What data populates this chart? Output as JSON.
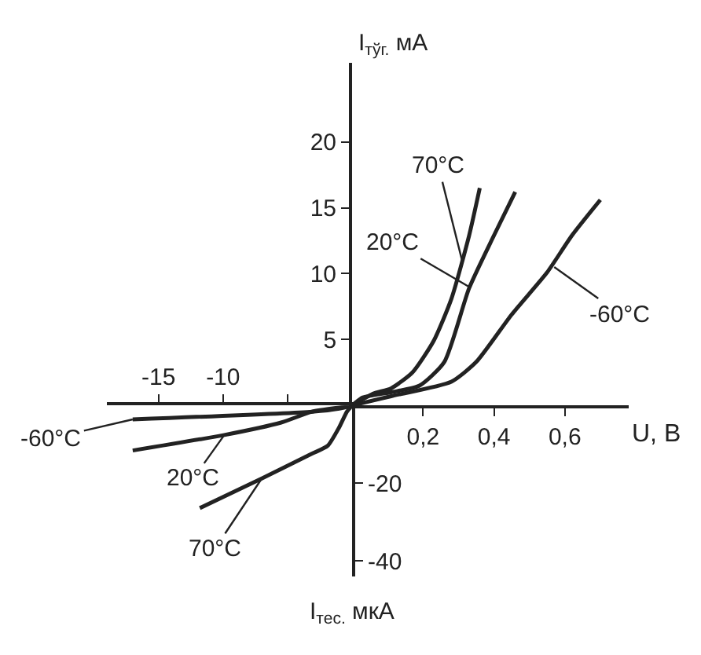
{
  "chart_data": [
    {
      "type": "line",
      "xlabel": "U, В",
      "ylabel": "I$_{тўг.}$ мА",
      "xlim": [
        0,
        0.78
      ],
      "xticks": [
        {
          "value": 0.2,
          "label": "0,2"
        },
        {
          "value": 0.4,
          "label": "0,4"
        },
        {
          "value": 0.6,
          "label": "0,6"
        }
      ],
      "ylim": [
        0,
        26
      ],
      "yticks": [
        5,
        10,
        15,
        20
      ],
      "marker": "none",
      "line_style": "solid",
      "series": [
        {
          "color": "#222222",
          "x": [
            0,
            0.06,
            0.11,
            0.17,
            0.23,
            0.28,
            0.33,
            0.36
          ],
          "values": [
            0,
            0.9,
            1.3,
            2.5,
            4.9,
            8.1,
            12.9,
            16.5
          ]
        },
        {
          "color": "#222222",
          "x": [
            0,
            0.03,
            0.11,
            0.19,
            0.26,
            0.33,
            0.4,
            0.46
          ],
          "values": [
            0,
            0.6,
            1,
            1.5,
            3.3,
            8.9,
            12.9,
            16.2
          ]
        },
        {
          "color": "#222222",
          "x": [
            0,
            0.11,
            0.28,
            0.35,
            0.45,
            0.55,
            0.62,
            0.7
          ],
          "values": [
            0,
            0.7,
            1.8,
            3.3,
            6.9,
            10.1,
            12.9,
            15.6
          ]
        }
      ],
      "annotations": [
        {
          "text": "70°C",
          "x": 0.31,
          "y": 11
        },
        {
          "text": "20°C",
          "x": 0.33,
          "y": 9
        },
        {
          "text": "-60°C",
          "x": 0.57,
          "y": 10.5
        }
      ]
    },
    {
      "type": "line",
      "xlim": [
        -19,
        0
      ],
      "xticks": [
        -15,
        -10,
        {
          "value": -5,
          "label": null
        }
      ],
      "ylim": [
        -44,
        0
      ],
      "yticks": [
        -20,
        -40
      ],
      "marker": "none",
      "line_style": "solid",
      "series": [
        {
          "color": "#222222",
          "x": [
            -17,
            -3.1,
            -1,
            0
          ],
          "values": [
            -3.6,
            -1.6,
            -0.8,
            0
          ]
        },
        {
          "color": "#222222",
          "x": [
            -17,
            -9.9,
            -5.5,
            -3.1,
            -0.7,
            0
          ],
          "values": [
            -11.6,
            -7.6,
            -4.4,
            -1.6,
            -0.4,
            0
          ]
        },
        {
          "color": "#222222",
          "x": [
            -11.8,
            -7,
            -3.1,
            -1.9,
            -1,
            -0.4,
            0
          ],
          "values": [
            -26.4,
            -18.8,
            -12.4,
            -10.4,
            -5.6,
            -1.6,
            0
          ]
        }
      ],
      "annotations": [
        {
          "text": "-60°C",
          "x": -17,
          "y": -3.6
        },
        {
          "text": "20°C",
          "x": -9.9,
          "y": -7.6
        },
        {
          "text": "70°C",
          "x": -7,
          "y": -18.8
        },
        "I$_{тес.}$ мкА"
      ]
    }
  ]
}
